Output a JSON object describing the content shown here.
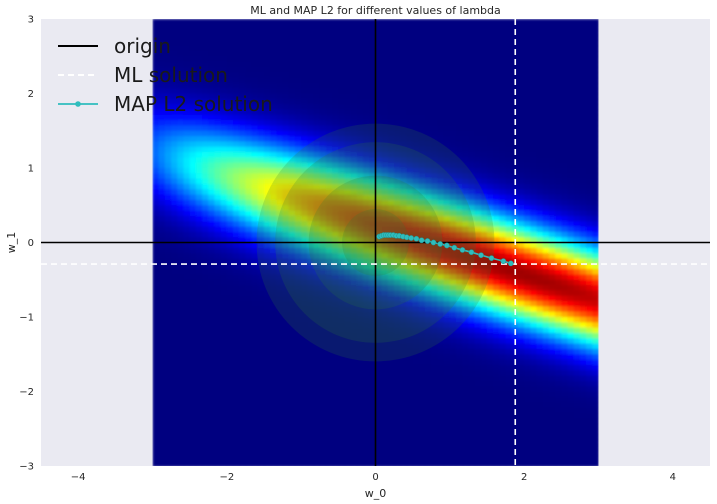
{
  "chart_data": {
    "type": "heatmap",
    "title": "ML and MAP L2 for different values of lambda",
    "xlabel": "w_0",
    "ylabel": "w_1",
    "xlim": [
      -4.5,
      4.5
    ],
    "ylim": [
      -3,
      3
    ],
    "xticks": [
      -4,
      -2,
      0,
      2,
      4
    ],
    "yticks": [
      -3,
      -2,
      -1,
      0,
      1,
      2,
      3
    ],
    "grid": false,
    "legend_position": "top-left",
    "background_color": "#EAEAF2",
    "colormap": "jet",
    "heatmap": {
      "x_range": [
        -3,
        3
      ],
      "y_range": [
        -3,
        3
      ],
      "peak": [
        1.9,
        -0.4
      ],
      "ridge_slope": -0.33,
      "ridge_width": 0.45,
      "color_scale": "jet"
    },
    "prior_circles": {
      "center": [
        0,
        0
      ],
      "radii": [
        0.45,
        0.9,
        1.35,
        1.6
      ],
      "color": "#2e7d32",
      "opacity": 0.2
    },
    "series": [
      {
        "name": "origin",
        "kind": "axes-lines",
        "color": "#000000",
        "x": 0,
        "y": 0
      },
      {
        "name": "ML solution",
        "kind": "crosshair",
        "color": "#ffffff",
        "style": "dashed",
        "x": 1.88,
        "y": -0.29
      },
      {
        "name": "MAP L2 solution",
        "kind": "line-markers",
        "color": "#2fbdbd",
        "points": [
          [
            0.05,
            0.08
          ],
          [
            0.08,
            0.09
          ],
          [
            0.11,
            0.1
          ],
          [
            0.14,
            0.1
          ],
          [
            0.17,
            0.1
          ],
          [
            0.2,
            0.1
          ],
          [
            0.24,
            0.1
          ],
          [
            0.28,
            0.09
          ],
          [
            0.32,
            0.09
          ],
          [
            0.37,
            0.08
          ],
          [
            0.42,
            0.07
          ],
          [
            0.48,
            0.06
          ],
          [
            0.55,
            0.05
          ],
          [
            0.62,
            0.03
          ],
          [
            0.7,
            0.02
          ],
          [
            0.78,
            0.0
          ],
          [
            0.87,
            -0.02
          ],
          [
            0.96,
            -0.04
          ],
          [
            1.06,
            -0.07
          ],
          [
            1.17,
            -0.1
          ],
          [
            1.29,
            -0.13
          ],
          [
            1.42,
            -0.17
          ],
          [
            1.56,
            -0.21
          ],
          [
            1.72,
            -0.25
          ],
          [
            1.82,
            -0.28
          ]
        ]
      }
    ]
  }
}
